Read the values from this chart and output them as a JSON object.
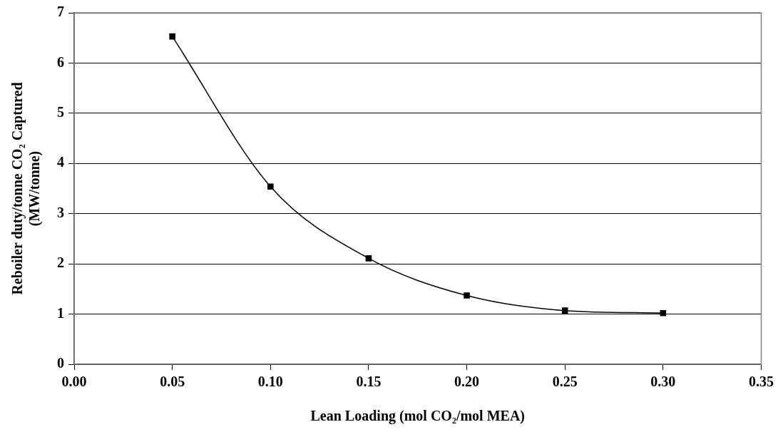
{
  "chart_data": {
    "type": "line",
    "xlabel": "Lean Loading (mol CO₂/mol MEA)",
    "ylabel": "Reboiler duty/tonne CO₂ Captured\n(MW/tonne)",
    "x": [
      0.05,
      0.1,
      0.15,
      0.2,
      0.25,
      0.3
    ],
    "series": [
      {
        "color": "#000000",
        "values": [
          6.53,
          3.54,
          2.11,
          1.37,
          1.07,
          1.02
        ]
      }
    ],
    "xlim": [
      0,
      0.35
    ],
    "xticks": [
      {
        "value": 0,
        "label": "0.00"
      },
      {
        "value": 0.05,
        "label": "0.05"
      },
      {
        "value": 0.1,
        "label": "0.10"
      },
      {
        "value": 0.15,
        "label": "0.15"
      },
      {
        "value": 0.2,
        "label": "0.20"
      },
      {
        "value": 0.25,
        "label": "0.25"
      },
      {
        "value": 0.3,
        "label": "0.30"
      },
      {
        "value": 0.35,
        "label": "0.35"
      }
    ],
    "ylim": [
      0,
      7
    ],
    "yticks": [
      0,
      1,
      2,
      3,
      4,
      5,
      6,
      7
    ],
    "grid": "y",
    "legend": false,
    "marker": "square",
    "line_style": "solid"
  }
}
